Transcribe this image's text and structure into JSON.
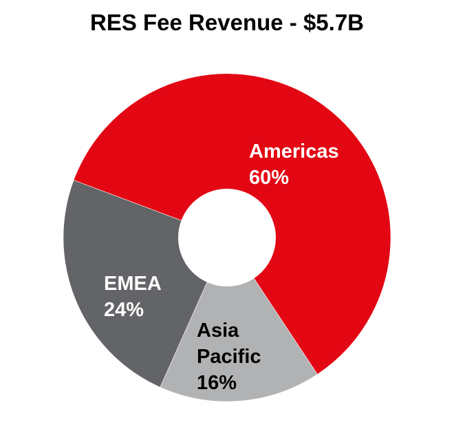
{
  "title": "RES Fee Revenue - $5.7B",
  "chart_data": {
    "type": "pie",
    "subtype": "donut",
    "title": "RES Fee Revenue - $5.7B",
    "categories": [
      "Americas",
      "Asia Pacific",
      "EMEA"
    ],
    "values": [
      60,
      16,
      24
    ],
    "unit": "%",
    "colors": [
      "#E30613",
      "#B1B2B4",
      "#636467"
    ],
    "label_colors": [
      "#FFFFFF",
      "#000000",
      "#FFFFFF"
    ],
    "labels": [
      {
        "name": "Americas",
        "value": "60%"
      },
      {
        "name": "Asia Pacific",
        "value": "16%"
      },
      {
        "name": "EMEA",
        "value": "24%"
      }
    ],
    "start_angle_deg": 290.5,
    "direction": "clockwise",
    "legend": "none (inline labels)"
  },
  "labels": {
    "americas": {
      "name": "Americas",
      "pct": "60%"
    },
    "asia_line1": "Asia",
    "asia_line2": "Pacific",
    "asia_pct": "16%",
    "emea": {
      "name": "EMEA",
      "pct": "24%"
    }
  }
}
